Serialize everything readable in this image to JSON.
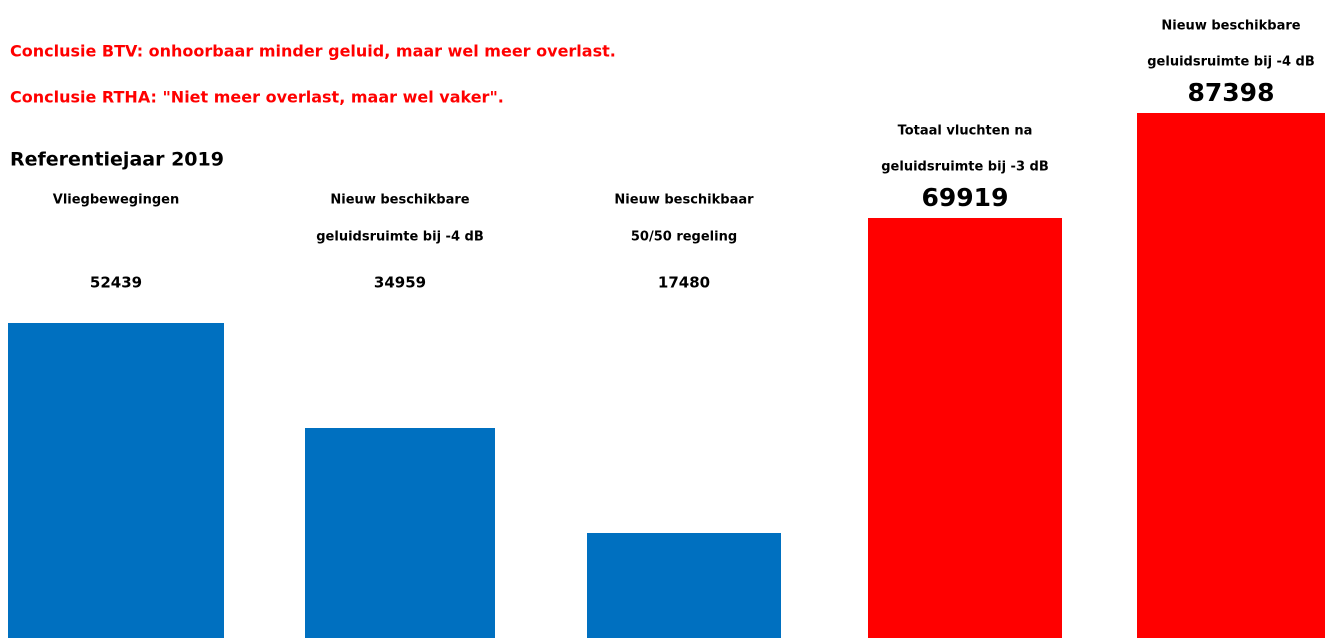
{
  "chart_data": {
    "type": "bar",
    "notes": [
      "Conclusie BTV: onhoorbaar minder geluid, maar wel meer overlast.",
      "Conclusie RTHA: \"Niet meer overlast, maar wel vaker\"."
    ],
    "subtitle": "Referentiejaar 2019",
    "categories": [
      [
        "Vliegbewegingen"
      ],
      [
        "Nieuw beschikbare",
        "geluidsruimte bij -4 dB"
      ],
      [
        "Nieuw beschikbaar",
        "50/50 regeling"
      ],
      [
        "Totaal vluchten na",
        "geluidsruimte bij -3 dB"
      ],
      [
        "Nieuw beschikbare",
        "geluidsruimte bij -4 dB"
      ]
    ],
    "values": [
      52439,
      34959,
      17480,
      69919,
      87398
    ],
    "colors": [
      "#0070c0",
      "#0070c0",
      "#0070c0",
      "#ff0000",
      "#ff0000"
    ]
  }
}
